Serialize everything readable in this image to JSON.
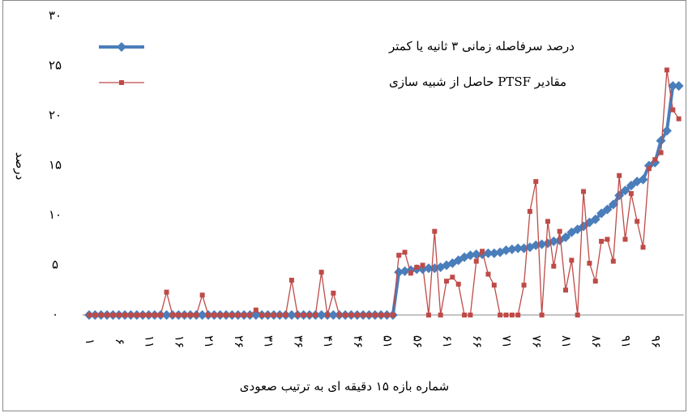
{
  "chart_data": {
    "type": "line",
    "x_label": "شماره بازه ۱۵ دقیقه ای به ترتیب صعودی",
    "y_label": "درصد",
    "categories": [
      "۱",
      null,
      null,
      null,
      null,
      "۶",
      null,
      null,
      null,
      null,
      "۱۱",
      null,
      null,
      null,
      null,
      "۱۶",
      null,
      null,
      null,
      null,
      "۲۱",
      null,
      null,
      null,
      null,
      "۲۶",
      null,
      null,
      null,
      null,
      "۳۱",
      null,
      null,
      null,
      null,
      "۳۶",
      null,
      null,
      null,
      null,
      "۴۱",
      null,
      null,
      null,
      null,
      "۴۶",
      null,
      null,
      null,
      null,
      "۵۱",
      null,
      null,
      null,
      null,
      "۵۶",
      null,
      null,
      null,
      null,
      "۶۱",
      null,
      null,
      null,
      null,
      "۶۶",
      null,
      null,
      null,
      null,
      "۷۱",
      null,
      null,
      null,
      null,
      "۷۶",
      null,
      null,
      null,
      null,
      "۸۱",
      null,
      null,
      null,
      null,
      "۸۶",
      null,
      null,
      null,
      null,
      "۹۱",
      null,
      null,
      null,
      null,
      "۹۶",
      null,
      null,
      null,
      null
    ],
    "series": [
      {
        "name": "درصد سرفاصله زمانی ۳ ثانیه یا کمتر",
        "color": "#4a7ebb",
        "marker": "diamond",
        "values": [
          0,
          0,
          0,
          0,
          0,
          0,
          0,
          0,
          0,
          0,
          0,
          0,
          0,
          0,
          0,
          0,
          0,
          0,
          0,
          0,
          0,
          0,
          0,
          0,
          0,
          0,
          0,
          0,
          0,
          0,
          0,
          0,
          0,
          0,
          0,
          0,
          0,
          0,
          0,
          0,
          0,
          0,
          0,
          0,
          0,
          0,
          0,
          0,
          0,
          0,
          0,
          0,
          4.3,
          4.4,
          4.5,
          4.6,
          4.6,
          4.7,
          4.7,
          4.8,
          5.0,
          5.2,
          5.5,
          5.8,
          6.0,
          6.1,
          6.1,
          6.2,
          6.2,
          6.3,
          6.5,
          6.6,
          6.7,
          6.7,
          6.8,
          7.0,
          7.1,
          7.2,
          7.4,
          7.5,
          7.8,
          8.3,
          8.6,
          8.9,
          9.3,
          9.6,
          10.2,
          10.6,
          11.1,
          12.0,
          12.5,
          13.0,
          13.4,
          13.6,
          15.0,
          15.3,
          17.5,
          18.5,
          23.0,
          23.0
        ]
      },
      {
        "name": "مقادیر PTSF حاصل از شبیه سازی",
        "color": "#be4b48",
        "marker": "square",
        "values": [
          0,
          0,
          0,
          0,
          0,
          0,
          0,
          0,
          0,
          0,
          0,
          0,
          0,
          2.3,
          0,
          0,
          0,
          0,
          0,
          2.0,
          0,
          0,
          0,
          0,
          0,
          0,
          0,
          0,
          0.5,
          0,
          0,
          0,
          0,
          0,
          3.5,
          0,
          0,
          0,
          0,
          4.3,
          0,
          2.2,
          0,
          0,
          0,
          0,
          0,
          0,
          0,
          0,
          0,
          0,
          6.0,
          6.3,
          4.2,
          4.8,
          5.0,
          0,
          8.4,
          0,
          3.4,
          3.8,
          3.1,
          0,
          0,
          5.4,
          6.4,
          4.1,
          3.0,
          0,
          0,
          0,
          0,
          3.0,
          10.4,
          13.4,
          0,
          9.4,
          4.9,
          8.4,
          2.5,
          5.5,
          0,
          12.4,
          5.2,
          3.4,
          7.4,
          7.6,
          5.4,
          14.0,
          7.6,
          12.2,
          9.4,
          6.8,
          14.7,
          15.6,
          16.3,
          24.6,
          20.6,
          19.7
        ]
      }
    ],
    "ylim": [
      0,
      30
    ],
    "yticks": [
      {
        "value": 0,
        "label": "٠"
      },
      {
        "value": 5,
        "label": "۵"
      },
      {
        "value": 10,
        "label": "۱۰"
      },
      {
        "value": 15,
        "label": "۱۵"
      },
      {
        "value": 20,
        "label": "۲۰"
      },
      {
        "value": 25,
        "label": "۲۵"
      },
      {
        "value": 30,
        "label": "۳۰"
      }
    ],
    "grid": false,
    "legend": "top-left"
  }
}
